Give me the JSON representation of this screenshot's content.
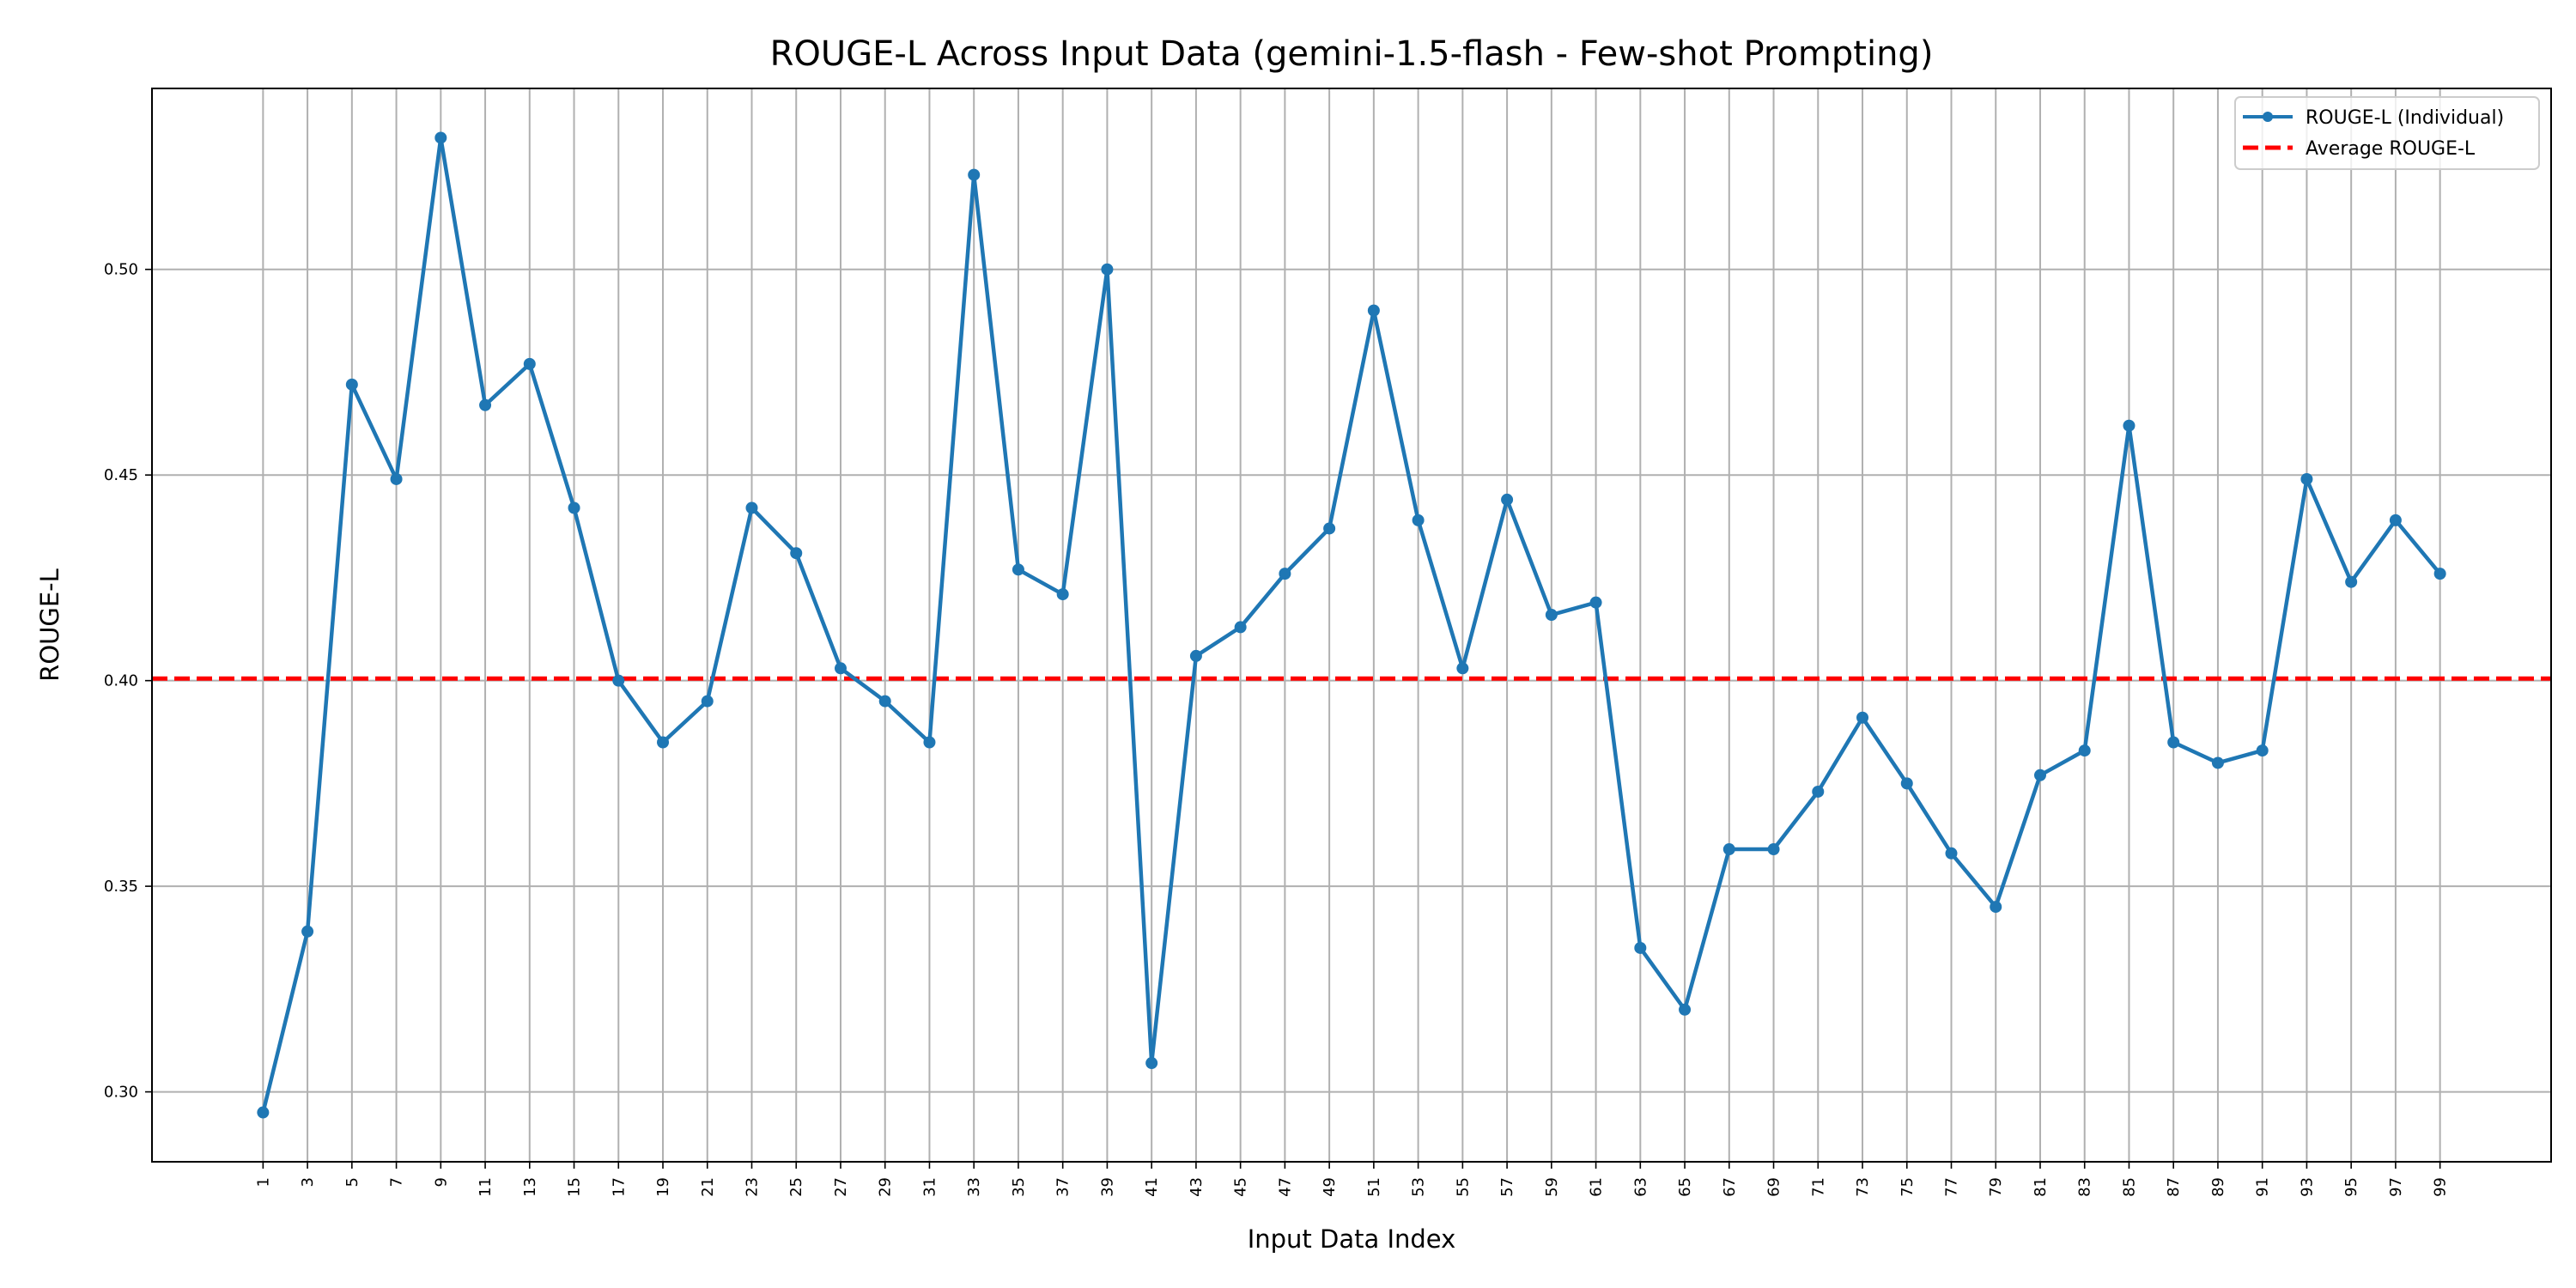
{
  "chart_data": {
    "type": "line",
    "title": "ROUGE-L Across Input Data (gemini-1.5-flash - Few-shot Prompting)",
    "xlabel": "Input Data Index",
    "ylabel": "ROUGE-L",
    "x": [
      1,
      3,
      5,
      7,
      9,
      11,
      13,
      15,
      17,
      19,
      21,
      23,
      25,
      27,
      29,
      31,
      33,
      35,
      37,
      39,
      41,
      43,
      45,
      47,
      49,
      51,
      53,
      55,
      57,
      59,
      61,
      63,
      65,
      67,
      69,
      71,
      73,
      75,
      77,
      79,
      81,
      83,
      85,
      87,
      89,
      91,
      93,
      95,
      97,
      99
    ],
    "x_tick_labels": [
      "1",
      "3",
      "5",
      "7",
      "9",
      "11",
      "13",
      "15",
      "17",
      "19",
      "21",
      "23",
      "25",
      "27",
      "29",
      "31",
      "33",
      "35",
      "37",
      "39",
      "41",
      "43",
      "45",
      "47",
      "49",
      "51",
      "53",
      "55",
      "57",
      "59",
      "61",
      "63",
      "65",
      "67",
      "69",
      "71",
      "73",
      "75",
      "77",
      "79",
      "81",
      "83",
      "85",
      "87",
      "89",
      "91",
      "93",
      "95",
      "97",
      "99"
    ],
    "y_ticks": [
      0.3,
      0.35,
      0.4,
      0.45,
      0.5
    ],
    "y_tick_labels": [
      "0.30",
      "0.35",
      "0.40",
      "0.45",
      "0.50"
    ],
    "xlim": [
      -4,
      104
    ],
    "ylim": [
      0.283,
      0.544
    ],
    "grid": true,
    "legend_position": "top-right",
    "series": [
      {
        "name": "ROUGE-L (Individual)",
        "color": "#1f77b4",
        "style": "solid-with-markers",
        "values": [
          0.295,
          0.339,
          0.472,
          0.449,
          0.532,
          0.467,
          0.477,
          0.442,
          0.4,
          0.385,
          0.395,
          0.442,
          0.431,
          0.403,
          0.395,
          0.385,
          0.523,
          0.427,
          0.421,
          0.5,
          0.307,
          0.406,
          0.413,
          0.426,
          0.437,
          0.49,
          0.439,
          0.403,
          0.444,
          0.416,
          0.419,
          0.335,
          0.32,
          0.359,
          0.359,
          0.373,
          0.391,
          0.375,
          0.358,
          0.345,
          0.377,
          0.383,
          0.462,
          0.385,
          0.38,
          0.383,
          0.449,
          0.424,
          0.439,
          0.426
        ]
      },
      {
        "name": "Average ROUGE-L",
        "color": "#ff0000",
        "style": "dashed",
        "value": 0.4005
      }
    ]
  }
}
